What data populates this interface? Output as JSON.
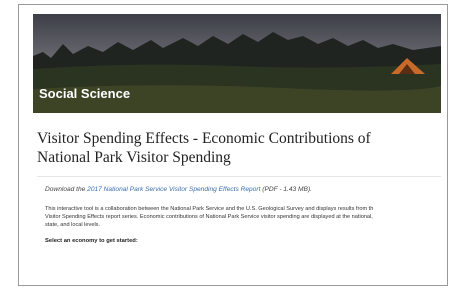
{
  "banner": {
    "label": "Social Science"
  },
  "heading": "Visitor Spending Effects - Economic Contributions of National Park Visitor Spending",
  "download": {
    "prefix": "Download the",
    "link": "2017 National Park Service Visitor Spending Effects Report",
    "suffix": "(PDF - 1.43 MB)."
  },
  "intro": {
    "lines": [
      "This interactive tool is a collaboration between the National Park Service and the U.S. Geological Survey and displays results from th",
      "Visitor Spending Effects report series. Economic contributions of National Park Service visitor spending are displayed at the national,",
      "state, and local levels."
    ]
  },
  "prompt": "Select an economy to get started:"
}
